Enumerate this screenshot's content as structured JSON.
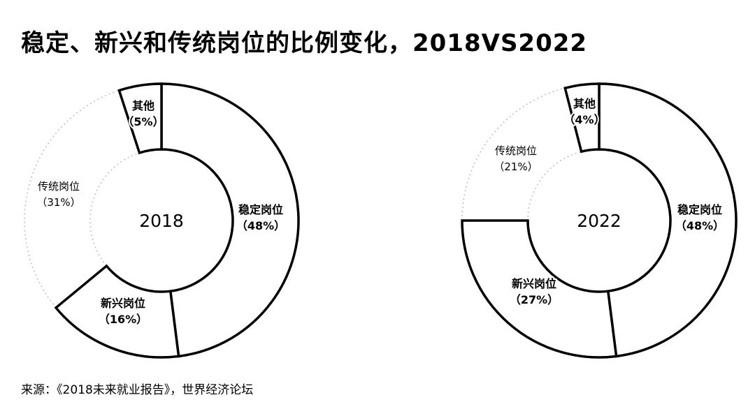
{
  "title": "稳定、新兴和传统岗位的比例变化，2018VS2022",
  "source": "来源：《2018未来就业报告》，世界经济论坛",
  "colors": {
    "stroke": "#000000",
    "fill": "#ffffff",
    "dashed": "#bdbdbd"
  },
  "chart_data": [
    {
      "type": "pie",
      "center_label": "2018",
      "categories": [
        "稳定岗位",
        "新兴岗位",
        "传统岗位",
        "其他"
      ],
      "values": [
        48,
        16,
        31,
        5
      ],
      "value_labels": [
        "（48%）",
        "（16%）",
        "（31%）",
        "（5%）"
      ]
    },
    {
      "type": "pie",
      "center_label": "2022",
      "categories": [
        "稳定岗位",
        "新兴岗位",
        "传统岗位",
        "其他"
      ],
      "values": [
        48,
        27,
        21,
        4
      ],
      "value_labels": [
        "（48%）",
        "（27%）",
        "（21%）",
        "（4%）"
      ]
    }
  ]
}
